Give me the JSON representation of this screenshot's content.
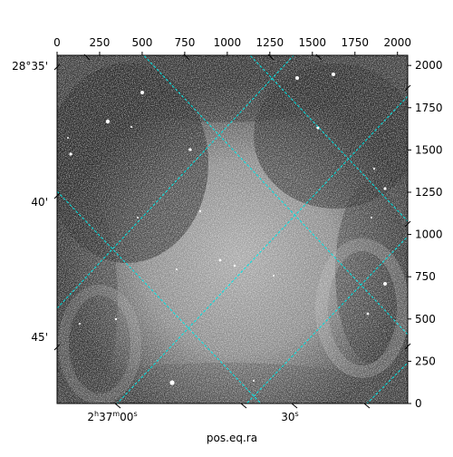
{
  "plot": {
    "top_axis_ticks": [
      {
        "value": 0,
        "label": "0"
      },
      {
        "value": 250,
        "label": "250"
      },
      {
        "value": 500,
        "label": "500"
      },
      {
        "value": 750,
        "label": "750"
      },
      {
        "value": 1000,
        "label": "1000"
      },
      {
        "value": 1250,
        "label": "1250"
      },
      {
        "value": 1500,
        "label": "1500"
      },
      {
        "value": 1750,
        "label": "1750"
      },
      {
        "value": 2000,
        "label": "2000"
      }
    ],
    "right_axis_ticks": [
      {
        "value": 0,
        "label": "0"
      },
      {
        "value": 250,
        "label": "250"
      },
      {
        "value": 500,
        "label": "500"
      },
      {
        "value": 750,
        "label": "750"
      },
      {
        "value": 1000,
        "label": "1000"
      },
      {
        "value": 1250,
        "label": "1250"
      },
      {
        "value": 1500,
        "label": "1500"
      },
      {
        "value": 1750,
        "label": "1750"
      },
      {
        "value": 2000,
        "label": "2000"
      }
    ],
    "pixel_range": [
      0,
      2060
    ],
    "dec_labels": [
      "28°35'",
      "40'",
      "45'"
    ],
    "ra_labels": [
      "2h37m00s",
      "30s"
    ],
    "ra_label_parts": [
      {
        "h": "2",
        "hs": "h",
        "m": "37",
        "ms": "m",
        "s": "00",
        "ss": "s"
      },
      {
        "s": "30",
        "ss": "s"
      }
    ],
    "xlabel": "pos.eq.ra",
    "grid_color": "#00e5e5"
  }
}
